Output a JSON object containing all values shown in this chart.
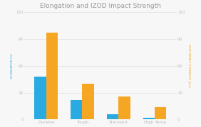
{
  "title": "Elongation and IZOD Impact Strength",
  "categories": [
    "Durable",
    "Tough",
    "Standard",
    "High Temp"
  ],
  "elongation": [
    48,
    22,
    6,
    2
  ],
  "izod": [
    97,
    40,
    26,
    14
  ],
  "bar_color_blue": "#29aae1",
  "bar_color_orange": "#f5a623",
  "ylabel_left": "ELONGATION (%)",
  "ylabel_right": "IZOD IMPACT STRENGTH (J/m)",
  "ylim_left": [
    0,
    120
  ],
  "ylim_right": [
    0,
    120
  ],
  "yticks": [
    0,
    30,
    60,
    90,
    120
  ],
  "background_color": "#f7f7f7",
  "title_fontsize": 6.5,
  "axis_label_fontsize": 3.0,
  "tick_fontsize": 4.0,
  "xtick_fontsize": 4.2,
  "bar_width": 0.32,
  "title_color": "#999999",
  "tick_color": "#bbbbbb",
  "grid_color": "#e0e0e0",
  "baseline_color": "#cccccc"
}
